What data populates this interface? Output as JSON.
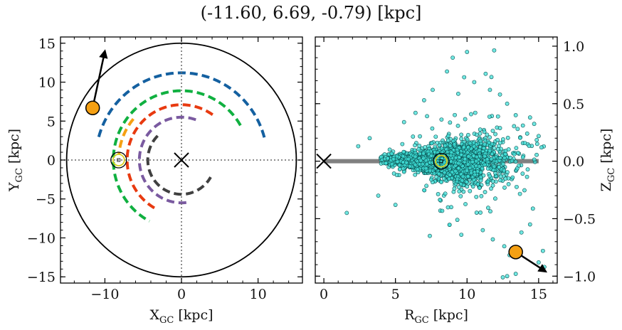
{
  "title": "(-11.60, 6.69, -0.79) [kpc]",
  "chart_data": [
    {
      "type": "scatter",
      "panel": "left",
      "xlabel": "X",
      "xlabel_sub": "GC",
      "xlabel_unit": " [kpc]",
      "ylabel": "Y",
      "ylabel_sub": "GC",
      "ylabel_unit": " [kpc]",
      "xlim": [
        -15.8,
        15.8
      ],
      "ylim": [
        -15.8,
        15.8
      ],
      "xticks": [
        -10,
        0,
        10
      ],
      "yticks": [
        -15,
        -10,
        -5,
        0,
        5,
        10,
        15
      ],
      "tick_labels_x": [
        "−10",
        "0",
        "10"
      ],
      "tick_labels_y": [
        "−15",
        "−10",
        "−5",
        "0",
        "5",
        "10",
        "15"
      ],
      "boundary_circle_radius": 15,
      "grid_lines": "dotted crosshair at x=0 and y=0",
      "galactic_center": [
        0,
        0
      ],
      "sun": [
        -8.2,
        0
      ],
      "object": {
        "x": -11.6,
        "y": 6.69,
        "arrow_to": [
          -10.0,
          14.0
        ],
        "color": "#f5a013"
      },
      "spiral_arms": [
        {
          "color": "#1460a0",
          "radius": 11.2,
          "start_deg": 15,
          "end_deg": 165
        },
        {
          "color": "#10b040",
          "radius": 8.9,
          "start_deg": 30,
          "end_deg": 242
        },
        {
          "color": "#f5a013",
          "radius": 8.2,
          "start_deg": 140,
          "end_deg": 175
        },
        {
          "color": "#e83a10",
          "radius": 7.1,
          "start_deg": 55,
          "end_deg": 242
        },
        {
          "color": "#7a5aa0",
          "radius": 5.5,
          "start_deg": 70,
          "end_deg": 278
        },
        {
          "color": "#404040",
          "radius": 4.4,
          "start_deg": 135,
          "end_deg": 330
        }
      ]
    },
    {
      "type": "scatter",
      "panel": "right",
      "xlabel": "R",
      "xlabel_sub": "GC",
      "xlabel_unit": " [kpc]",
      "ylabel": "Z",
      "ylabel_sub": "GC",
      "ylabel_unit": " [kpc]",
      "xlim": [
        -0.6,
        16.3
      ],
      "ylim": [
        -1.06,
        1.08
      ],
      "xticks": [
        0,
        5,
        10,
        15
      ],
      "yticks": [
        -1.0,
        -0.5,
        0.0,
        0.5,
        1.0
      ],
      "tick_labels_x": [
        "0",
        "5",
        "10",
        "15"
      ],
      "tick_labels_y": [
        "−1.0",
        "−0.5",
        "0.0",
        "0.5",
        "1.0"
      ],
      "disk_line": {
        "x": [
          0,
          15
        ],
        "y": 0,
        "color": "#808080"
      },
      "galactic_center": [
        0,
        0
      ],
      "sun": [
        8.2,
        0
      ],
      "object": {
        "x": 13.4,
        "y": -0.79,
        "arrow_to": [
          15.5,
          -0.96
        ],
        "color": "#f5a013"
      },
      "stars": {
        "count": 2600,
        "color": "#40e0d8",
        "edge_color": "#0a5050",
        "core_x": [
          4.2,
          12.2
        ],
        "core_z_spread": 0.1,
        "sample_outliers": [
          [
            10.0,
            0.95
          ],
          [
            9.0,
            0.9
          ],
          [
            8.6,
            0.78
          ],
          [
            9.8,
            0.73
          ],
          [
            11.3,
            0.76
          ],
          [
            11.6,
            0.62
          ],
          [
            12.3,
            0.58
          ],
          [
            12.8,
            0.5
          ],
          [
            13.4,
            0.4
          ],
          [
            14.4,
            0.38
          ],
          [
            7.6,
            0.62
          ],
          [
            7.0,
            0.53
          ],
          [
            6.4,
            0.42
          ],
          [
            5.6,
            0.34
          ],
          [
            3.2,
            0.2
          ],
          [
            2.4,
            0.13
          ],
          [
            1.6,
            -0.45
          ],
          [
            3.8,
            -0.3
          ],
          [
            5.0,
            -0.38
          ],
          [
            7.4,
            -0.65
          ],
          [
            9.6,
            -0.64
          ],
          [
            11.1,
            -0.6
          ],
          [
            11.8,
            -0.68
          ],
          [
            12.6,
            -0.74
          ],
          [
            13.8,
            -0.62
          ],
          [
            14.4,
            -0.55
          ],
          [
            15.3,
            -0.78
          ],
          [
            15.0,
            -0.88
          ],
          [
            15.4,
            -0.92
          ],
          [
            12.8,
            -1.0
          ],
          [
            12.5,
            -1.01
          ],
          [
            13.4,
            -0.98
          ],
          [
            10.2,
            -0.26
          ],
          [
            12.9,
            -0.2
          ],
          [
            14.9,
            0.15
          ],
          [
            15.2,
            0.12
          ],
          [
            14.2,
            0.24
          ],
          [
            13.9,
            0.31
          ],
          [
            4.6,
            0.1
          ],
          [
            5.1,
            -0.12
          ]
        ]
      }
    }
  ]
}
